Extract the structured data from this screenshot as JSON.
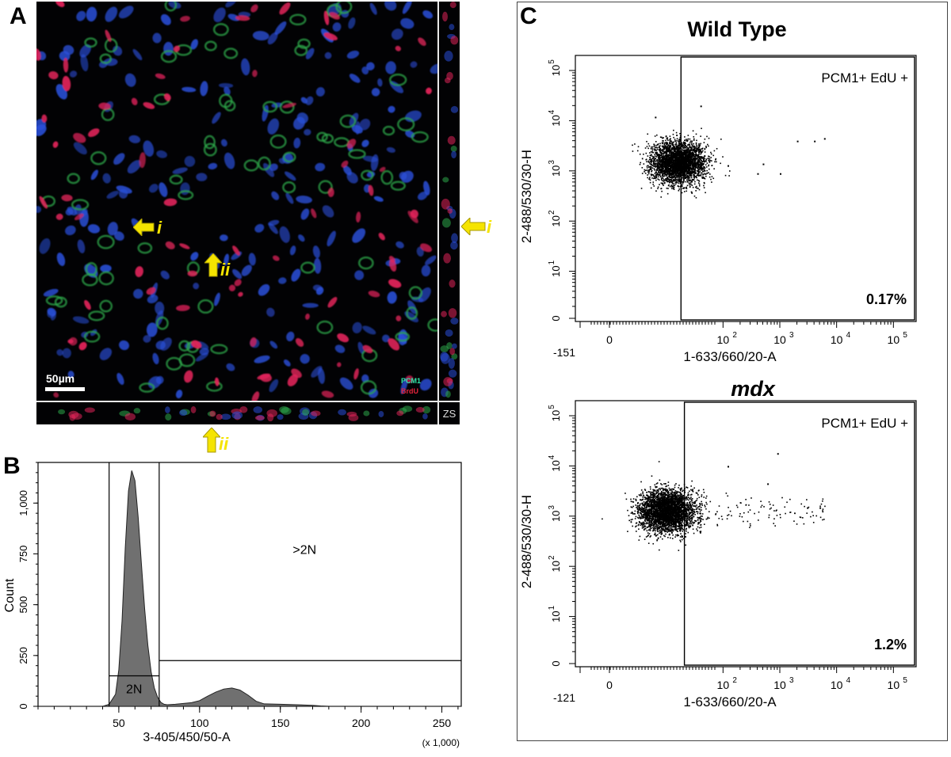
{
  "panel_letters": {
    "a": "A",
    "b": "B",
    "c": "C"
  },
  "panel_a": {
    "scalebar_label": "50µm",
    "legend": [
      {
        "label": "PCM1",
        "color": "#2ee6a8"
      },
      {
        "label": "BrdU",
        "color": "#e8243c"
      }
    ],
    "corner_label": "ZS",
    "arrow_i": "i",
    "arrow_ii": "ii",
    "side_arrow_i": "i",
    "bottom_arrow_ii": "ii",
    "arrow_color": "#f5e400",
    "channel_colors": {
      "nuclei": "#2a4fd8",
      "pcm1": "#2ea84a",
      "brdu": "#e0245a"
    }
  },
  "chart_data": [
    {
      "type": "area",
      "panel": "B",
      "title": "",
      "xlabel": "3-405/450/50-A",
      "ylabel": "Count",
      "x_multiplier_label": "(x 1,000)",
      "xlim": [
        0,
        262
      ],
      "ylim": [
        0,
        1200
      ],
      "x_ticks": [
        50,
        100,
        150,
        200,
        250
      ],
      "y_ticks": [
        0,
        250,
        500,
        750,
        "1,000"
      ],
      "x": [
        0,
        40,
        44,
        48,
        50,
        52,
        54,
        56,
        58,
        60,
        62,
        64,
        66,
        68,
        70,
        72,
        74,
        76,
        78,
        80,
        85,
        90,
        95,
        100,
        105,
        110,
        115,
        120,
        125,
        130,
        135,
        140,
        150,
        160,
        170,
        175,
        180,
        262
      ],
      "counts": [
        0,
        0,
        10,
        60,
        180,
        420,
        780,
        1060,
        1160,
        1110,
        930,
        700,
        480,
        300,
        170,
        90,
        45,
        20,
        10,
        8,
        10,
        14,
        18,
        28,
        50,
        70,
        85,
        90,
        80,
        55,
        25,
        12,
        10,
        8,
        5,
        2,
        0,
        0
      ],
      "gates": [
        {
          "label": "2N",
          "x_range": [
            44,
            75
          ],
          "y_level": 150
        },
        {
          "label": ">2N",
          "x_range": [
            75,
            262
          ],
          "y_level": 225
        }
      ],
      "fill_color": "#707070"
    },
    {
      "type": "scatter",
      "panel": "C",
      "title": "Wild Type",
      "xlabel": "1-633/660/20-A",
      "ylabel": "2-488/530/30-H",
      "x_ticks": [
        "-151",
        "0",
        "10^2",
        "10^3",
        "10^4",
        "10^5"
      ],
      "y_ticks": [
        "0",
        "10^1",
        "10^2",
        "10^3",
        "10^4",
        "10^5"
      ],
      "gate_label": "PCM1+ EdU +",
      "percentage": "0.17%",
      "x_log_range": [
        -0.6,
        5.4
      ],
      "y_log_range": [
        0.0,
        5.3
      ],
      "cluster": {
        "x_center": 60,
        "y_center": 1500,
        "points": 3200
      },
      "sparse_points": [
        [
          80,
          20000
        ],
        [
          40,
          12000
        ],
        [
          400,
          900
        ],
        [
          500,
          1400
        ],
        [
          1000,
          900
        ],
        [
          2000,
          4000
        ],
        [
          4000,
          4000
        ],
        [
          6000,
          4500
        ],
        [
          120,
          1300
        ]
      ]
    },
    {
      "type": "scatter",
      "panel": "C",
      "title": "mdx",
      "xlabel": "1-633/660/20-A",
      "ylabel": "2-488/530/30-H",
      "x_ticks": [
        "-121",
        "0",
        "10^2",
        "10^3",
        "10^4",
        "10^5"
      ],
      "y_ticks": [
        "0",
        "10^1",
        "10^2",
        "10^3",
        "10^4",
        "10^5"
      ],
      "gate_label": "PCM1+ EdU +",
      "percentage": "1.2%",
      "x_log_range": [
        -0.6,
        5.4
      ],
      "y_log_range": [
        0.0,
        5.3
      ],
      "cluster": {
        "x_center": 50,
        "y_center": 1300,
        "points": 3400
      },
      "tail_points": 110,
      "sparse_points": [
        [
          900,
          18000
        ],
        [
          600,
          4500
        ],
        [
          120,
          10000
        ],
        [
          3000,
          1500
        ],
        [
          5000,
          1500
        ]
      ]
    }
  ]
}
